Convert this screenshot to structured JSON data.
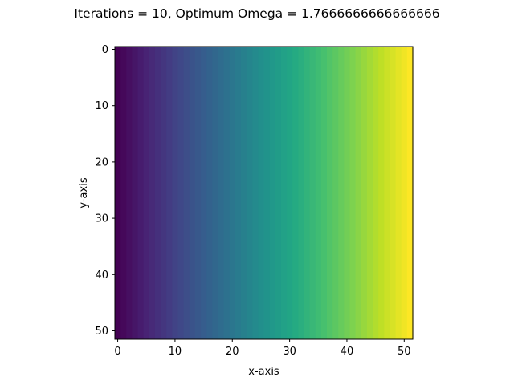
{
  "chart_data": {
    "type": "heatmap",
    "title": "Iterations = 10, Optimum Omega = 1.7666666666666666",
    "xlabel": "x-axis",
    "ylabel": "y-axis",
    "grid_size": [
      52,
      52
    ],
    "xlim": [
      -0.5,
      51.5
    ],
    "ylim": [
      51.5,
      -0.5
    ],
    "y_axis_inverted": true,
    "x_ticks": [
      0,
      10,
      20,
      30,
      40,
      50
    ],
    "y_ticks": [
      0,
      10,
      20,
      30,
      40,
      50
    ],
    "colormap": "viridis",
    "value_range": [
      0,
      1
    ],
    "column_values": [
      0.0,
      0.0196,
      0.0392,
      0.0588,
      0.0784,
      0.098,
      0.1176,
      0.1373,
      0.1569,
      0.1765,
      0.1961,
      0.2157,
      0.2353,
      0.2549,
      0.2745,
      0.2941,
      0.3137,
      0.3333,
      0.3529,
      0.3725,
      0.3922,
      0.4118,
      0.4314,
      0.451,
      0.4706,
      0.4902,
      0.5098,
      0.5294,
      0.549,
      0.5686,
      0.5882,
      0.6078,
      0.6275,
      0.6471,
      0.6667,
      0.6863,
      0.7059,
      0.7255,
      0.7451,
      0.7647,
      0.7843,
      0.8039,
      0.8235,
      0.8431,
      0.8627,
      0.8824,
      0.902,
      0.9216,
      0.9412,
      0.9608,
      0.9804,
      1.0
    ],
    "row_profile": "constant across rows (values vary only along x)",
    "colormap_stops": [
      "#440154",
      "#482475",
      "#414487",
      "#355f8d",
      "#2a788e",
      "#21918c",
      "#22a884",
      "#44bf70",
      "#7ad151",
      "#bddf26",
      "#fde725"
    ]
  }
}
